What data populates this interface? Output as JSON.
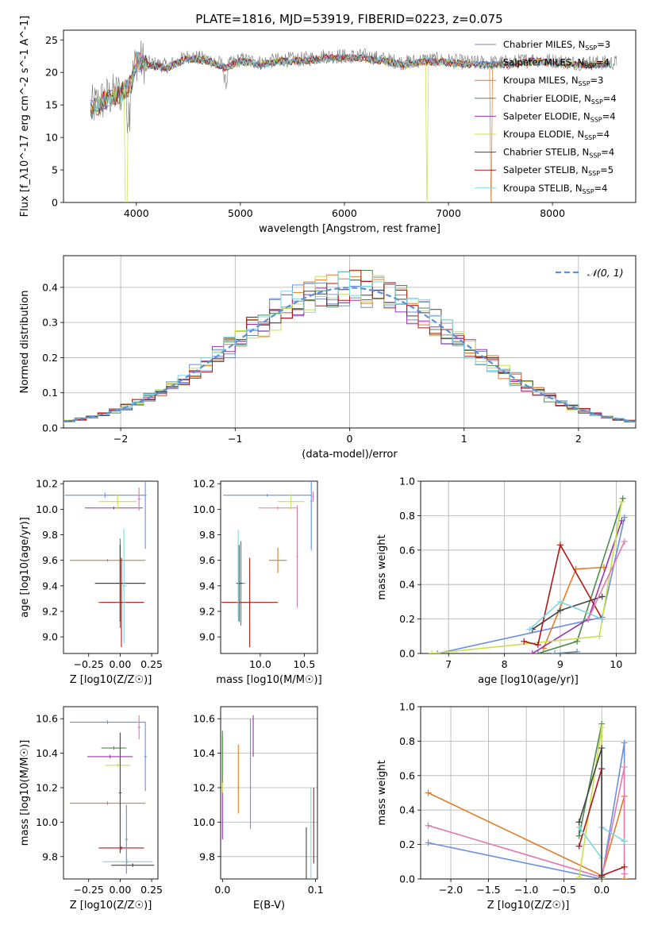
{
  "figure": {
    "title": "PLATE=1816, MJD=53919, FIBERID=0223, z=0.075"
  },
  "models": [
    {
      "label": "Chabrier MILES, N",
      "sub": "SSP",
      "tail": "=3",
      "color": "#6f8faf"
    },
    {
      "label": "Salpeter MILES, N",
      "sub": "SSP",
      "tail": "=4",
      "color": "#6a8fe0"
    },
    {
      "label": "Kroupa MILES, N",
      "sub": "SSP",
      "tail": "=3",
      "color": "#e07d2a"
    },
    {
      "label": "Chabrier ELODIE, N",
      "sub": "SSP",
      "tail": "=4",
      "color": "#4f8a4f"
    },
    {
      "label": "Salpeter ELODIE, N",
      "sub": "SSP",
      "tail": "=4",
      "color": "#9a35b0"
    },
    {
      "label": "Kroupa ELODIE, N",
      "sub": "SSP",
      "tail": "=4",
      "color": "#c8e04a"
    },
    {
      "label": "Chabrier STELIB, N",
      "sub": "SSP",
      "tail": "=4",
      "color": "#444444"
    },
    {
      "label": "Salpeter STELIB, N",
      "sub": "SSP",
      "tail": "=5",
      "color": "#b01818"
    },
    {
      "label": "Kroupa STELIB, N",
      "sub": "SSP",
      "tail": "=4",
      "color": "#7fd8e0"
    }
  ],
  "chart_data": [
    {
      "id": "spectrum",
      "type": "line",
      "xlabel": "wavelength [Angstrom, rest frame]",
      "ylabel": "Flux [f_λ10^-17 erg cm^-2 s^-1 A^-1]",
      "xlim": [
        3300,
        8800
      ],
      "ylim": [
        0,
        26.5
      ],
      "xticks": [
        4000,
        5000,
        6000,
        7000,
        8000
      ],
      "yticks": [
        0,
        5,
        10,
        15,
        20,
        25
      ],
      "observed_points": [
        [
          3560,
          14.5
        ],
        [
          3700,
          16
        ],
        [
          3850,
          17
        ],
        [
          3950,
          18.5
        ],
        [
          4000,
          22
        ],
        [
          4100,
          21.5
        ],
        [
          4300,
          21
        ],
        [
          4500,
          22.5
        ],
        [
          4700,
          22
        ],
        [
          4861,
          21
        ],
        [
          5000,
          22
        ],
        [
          5200,
          21.5
        ],
        [
          5400,
          22
        ],
        [
          5600,
          22
        ],
        [
          5800,
          22.5
        ],
        [
          6000,
          22.5
        ],
        [
          6200,
          22.5
        ],
        [
          6400,
          22
        ],
        [
          6563,
          21.5
        ],
        [
          6800,
          22
        ],
        [
          7000,
          21.8
        ],
        [
          7200,
          21.5
        ],
        [
          7400,
          21.5
        ],
        [
          7600,
          21.5
        ],
        [
          7800,
          22
        ],
        [
          8000,
          21.8
        ],
        [
          8200,
          21.5
        ],
        [
          8400,
          21.5
        ],
        [
          8600,
          21.5
        ]
      ]
    },
    {
      "id": "residuals",
      "type": "line",
      "xlabel": "(data-model)/error",
      "ylabel": "Normed distribution",
      "xlim": [
        -2.5,
        2.5
      ],
      "ylim": [
        0,
        0.49
      ],
      "xticks": [
        -2,
        -1,
        0,
        1,
        2
      ],
      "yticks": [
        0.0,
        0.1,
        0.2,
        0.3,
        0.4
      ],
      "gaussian_label": "𝒩(0, 1)",
      "gaussian_color": "#5b8fd6"
    },
    {
      "id": "age-vs-Z",
      "type": "scatter",
      "xlabel": "Z [log10(Z/Z☉)]",
      "ylabel": "age  [log10(age/yr)]",
      "xlim": [
        -0.45,
        0.3
      ],
      "ylim": [
        8.87,
        10.22
      ],
      "xticks": [
        -0.25,
        0.0,
        0.25
      ],
      "yticks": [
        9.0,
        9.2,
        9.4,
        9.6,
        9.8,
        10.0,
        10.2
      ],
      "points": [
        {
          "x": 0.0,
          "y": 9.42,
          "xerr": 0.2,
          "yerr": 0.3,
          "model": 0
        },
        {
          "x": -0.12,
          "y": 10.11,
          "xerr": 0.32,
          "yerr": 0.02,
          "model": 1
        },
        {
          "x": 0.2,
          "y": 10.11,
          "xerr": 0.01,
          "yerr": 0.42,
          "model": 1
        },
        {
          "x": -0.1,
          "y": 9.6,
          "xerr": 0.3,
          "yerr": 0.01,
          "model": 2
        },
        {
          "x": 0.0,
          "y": 9.42,
          "xerr": 0.2,
          "yerr": 0.35,
          "model": 3
        },
        {
          "x": -0.05,
          "y": 10.01,
          "xerr": 0.23,
          "yerr": 0.01,
          "model": 4
        },
        {
          "x": -0.02,
          "y": 10.06,
          "xerr": 0.15,
          "yerr": 0.06,
          "model": 5
        },
        {
          "x": 0.0,
          "y": 9.42,
          "xerr": 0.2,
          "yerr": 0.3,
          "model": 6
        },
        {
          "x": 0.01,
          "y": 9.27,
          "xerr": 0.18,
          "yerr": 0.35,
          "model": 7
        },
        {
          "x": 0.03,
          "y": 9.4,
          "xerr": 0.02,
          "yerr": 0.45,
          "model": 8
        },
        {
          "x": 0.15,
          "y": 10.08,
          "xerr": 0.01,
          "yerr": 0.09,
          "model": 4
        }
      ]
    },
    {
      "id": "age-vs-mass",
      "type": "scatter",
      "xlabel": "mass [log10(M/M☉)]",
      "ylabel": "",
      "xlim": [
        9.55,
        10.65
      ],
      "ylim": [
        8.87,
        10.22
      ],
      "xticks": [
        10.0,
        10.5
      ],
      "yticks": [
        9.0,
        9.2,
        9.4,
        9.6,
        9.8,
        10.0,
        10.2
      ],
      "points": [
        {
          "x": 9.78,
          "y": 9.42,
          "xerr": 0.05,
          "yerr": 0.33,
          "model": 0
        },
        {
          "x": 10.08,
          "y": 10.11,
          "xerr": 0.5,
          "yerr": 0.01,
          "model": 1
        },
        {
          "x": 10.58,
          "y": 10.06,
          "xerr": 0.01,
          "yerr": 0.38,
          "model": 1
        },
        {
          "x": 10.2,
          "y": 9.6,
          "xerr": 0.1,
          "yerr": 0.1,
          "model": 2
        },
        {
          "x": 9.78,
          "y": 9.42,
          "xerr": 0.03,
          "yerr": 0.33,
          "model": 3
        },
        {
          "x": 10.2,
          "y": 10.01,
          "xerr": 0.22,
          "yerr": 0.01,
          "model": 4
        },
        {
          "x": 10.42,
          "y": 9.63,
          "xerr": 0.01,
          "yerr": 0.4,
          "model": 4
        },
        {
          "x": 10.35,
          "y": 10.06,
          "xerr": 0.15,
          "yerr": 0.06,
          "model": 5
        },
        {
          "x": 9.76,
          "y": 9.42,
          "xerr": 0.03,
          "yerr": 0.3,
          "model": 6
        },
        {
          "x": 9.88,
          "y": 9.27,
          "xerr": 0.32,
          "yerr": 0.35,
          "model": 7
        },
        {
          "x": 9.75,
          "y": 9.48,
          "xerr": 0.01,
          "yerr": 0.36,
          "model": 8
        },
        {
          "x": 10.6,
          "y": 10.1,
          "xerr": 0.01,
          "yerr": 0.04,
          "model": 4
        }
      ]
    },
    {
      "id": "massweight-vs-age",
      "type": "line",
      "xlabel": "age  [log10(age/yr)]",
      "ylabel": "mass weight",
      "xlim": [
        6.5,
        10.35
      ],
      "ylim": [
        0,
        1.0
      ],
      "xticks": [
        7,
        8,
        9,
        10
      ],
      "yticks": [
        0.0,
        0.2,
        0.4,
        0.6,
        0.8,
        1.0
      ],
      "series": [
        {
          "model": 1,
          "x": [
            6.8,
            9.75,
            10.15
          ],
          "y": [
            0.0,
            0.21,
            0.79
          ]
        },
        {
          "model": 2,
          "x": [
            8.7,
            9.28,
            9.78
          ],
          "y": [
            0.03,
            0.49,
            0.5
          ]
        },
        {
          "model": 3,
          "x": [
            8.6,
            9.3,
            10.12
          ],
          "y": [
            0.0,
            0.07,
            0.9
          ]
        },
        {
          "model": 4,
          "x": [
            8.5,
            9.5,
            10.1
          ],
          "y": [
            0.0,
            0.2,
            0.77
          ]
        },
        {
          "model": 5,
          "x": [
            6.7,
            9.7,
            10.1
          ],
          "y": [
            0.0,
            0.1,
            0.88
          ]
        },
        {
          "model": 6,
          "x": [
            8.5,
            9.0,
            9.75
          ],
          "y": [
            0.14,
            0.25,
            0.33
          ]
        },
        {
          "model": 7,
          "x": [
            8.35,
            8.6,
            9.0,
            9.75
          ],
          "y": [
            0.07,
            0.05,
            0.63,
            0.2
          ]
        },
        {
          "model": 8,
          "x": [
            8.45,
            9.0,
            9.75
          ],
          "y": [
            0.14,
            0.3,
            0.2
          ]
        },
        {
          "model": 0,
          "x": [
            8.9,
            9.3
          ],
          "y": [
            0.0,
            0.01
          ]
        },
        {
          "model": 4,
          "x": [
            9.5,
            10.15
          ],
          "y": [
            0.2,
            0.65
          ],
          "color": "#e07ab0"
        }
      ]
    },
    {
      "id": "mass-vs-Z",
      "type": "scatter",
      "xlabel": "Z [log10(Z/Z☉)]",
      "ylabel": "mass [log10(M/M☉)]",
      "xlim": [
        -0.45,
        0.3
      ],
      "ylim": [
        9.67,
        10.67
      ],
      "xticks": [
        -0.25,
        0.0,
        0.25
      ],
      "yticks": [
        9.8,
        10.0,
        10.2,
        10.4,
        10.6
      ],
      "points": [
        {
          "x": -0.1,
          "y": 10.58,
          "xerr": 0.3,
          "yerr": 0.01,
          "model": 1
        },
        {
          "x": 0.2,
          "y": 10.38,
          "xerr": 0.01,
          "yerr": 0.2,
          "model": 1
        },
        {
          "x": -0.1,
          "y": 10.11,
          "xerr": 0.3,
          "yerr": 0.01,
          "model": 2
        },
        {
          "x": -0.05,
          "y": 10.43,
          "xerr": 0.1,
          "yerr": 0.01,
          "model": 3
        },
        {
          "x": -0.08,
          "y": 10.38,
          "xerr": 0.18,
          "yerr": 0.01,
          "model": 4
        },
        {
          "x": -0.02,
          "y": 10.33,
          "xerr": 0.1,
          "yerr": 0.01,
          "model": 5
        },
        {
          "x": 0.0,
          "y": 10.17,
          "xerr": 0.01,
          "yerr": 0.35,
          "model": 6
        },
        {
          "x": 0.01,
          "y": 9.85,
          "xerr": 0.18,
          "yerr": 0.01,
          "model": 7
        },
        {
          "x": 0.06,
          "y": 9.77,
          "xerr": 0.2,
          "yerr": 0.01,
          "model": 8
        },
        {
          "x": 0.1,
          "y": 9.75,
          "xerr": 0.17,
          "yerr": 0.01,
          "model": 6
        },
        {
          "x": 0.15,
          "y": 10.55,
          "xerr": 0.01,
          "yerr": 0.07,
          "model": 4
        },
        {
          "x": 0.05,
          "y": 9.9,
          "xerr": 0.01,
          "yerr": 0.2,
          "model": 0
        }
      ]
    },
    {
      "id": "mass-vs-EBV",
      "type": "scatter",
      "xlabel": "E(B-V)",
      "ylabel": "",
      "xlim": [
        -0.002,
        0.102
      ],
      "ylim": [
        9.67,
        10.67
      ],
      "xticks": [
        0.0,
        0.1
      ],
      "yticks": [
        9.8,
        10.0,
        10.2,
        10.4,
        10.6
      ],
      "points": [
        {
          "x": 0.0,
          "y": 10.2,
          "yerr": 0.3,
          "model": 4
        },
        {
          "x": 0.0,
          "y": 10.35,
          "yerr": 0.18,
          "model": 5
        },
        {
          "x": 0.0,
          "y": 10.38,
          "yerr": 0.15,
          "model": 3
        },
        {
          "x": 0.017,
          "y": 10.25,
          "yerr": 0.2,
          "model": 2
        },
        {
          "x": 0.03,
          "y": 10.28,
          "yerr": 0.32,
          "model": 1
        },
        {
          "x": 0.033,
          "y": 10.5,
          "yerr": 0.12,
          "model": 4
        },
        {
          "x": 0.09,
          "y": 9.77,
          "yerr": 0.2,
          "model": 6
        },
        {
          "x": 0.095,
          "y": 9.9,
          "yerr": 0.3,
          "model": 8
        },
        {
          "x": 0.098,
          "y": 9.98,
          "yerr": 0.22,
          "model": 7
        }
      ]
    },
    {
      "id": "massweight-vs-Z",
      "type": "line",
      "xlabel": "Z [log10(Z/Z☉)]",
      "ylabel": "mass weight",
      "xlim": [
        -2.4,
        0.45
      ],
      "ylim": [
        0,
        1.0
      ],
      "xticks": [
        -2.0,
        -1.5,
        -1.0,
        -0.5,
        0.0
      ],
      "yticks": [
        0.0,
        0.2,
        0.4,
        0.6,
        0.8,
        1.0
      ],
      "series": [
        {
          "model": 1,
          "x": [
            -2.3,
            0.0,
            0.3,
            0.3
          ],
          "y": [
            0.21,
            0.0,
            0.79,
            0.22
          ]
        },
        {
          "model": 2,
          "x": [
            -2.3,
            0.0,
            0.3,
            0.3
          ],
          "y": [
            0.5,
            0.02,
            0.48,
            0.0
          ]
        },
        {
          "model": 4,
          "x": [
            -2.3,
            0.0,
            0.3,
            0.3
          ],
          "y": [
            0.31,
            0.01,
            0.65,
            0.03
          ],
          "color": "#e07ab0"
        },
        {
          "model": 3,
          "x": [
            -0.3,
            -0.3,
            0.0,
            0.0
          ],
          "y": [
            0.33,
            0.25,
            0.9,
            0.0
          ]
        },
        {
          "model": 5,
          "x": [
            -0.3,
            0.0,
            0.0
          ],
          "y": [
            0.01,
            0.88,
            0.0
          ]
        },
        {
          "model": 7,
          "x": [
            -0.3,
            0.0,
            0.0,
            0.3
          ],
          "y": [
            0.19,
            0.64,
            0.02,
            0.07
          ]
        },
        {
          "model": 8,
          "x": [
            -0.3,
            0.0,
            0.0,
            0.3
          ],
          "y": [
            0.3,
            0.12,
            0.3,
            0.22
          ]
        },
        {
          "model": 6,
          "x": [
            -0.3,
            0.0,
            0.0
          ],
          "y": [
            0.33,
            0.76,
            0.01
          ]
        }
      ]
    }
  ]
}
